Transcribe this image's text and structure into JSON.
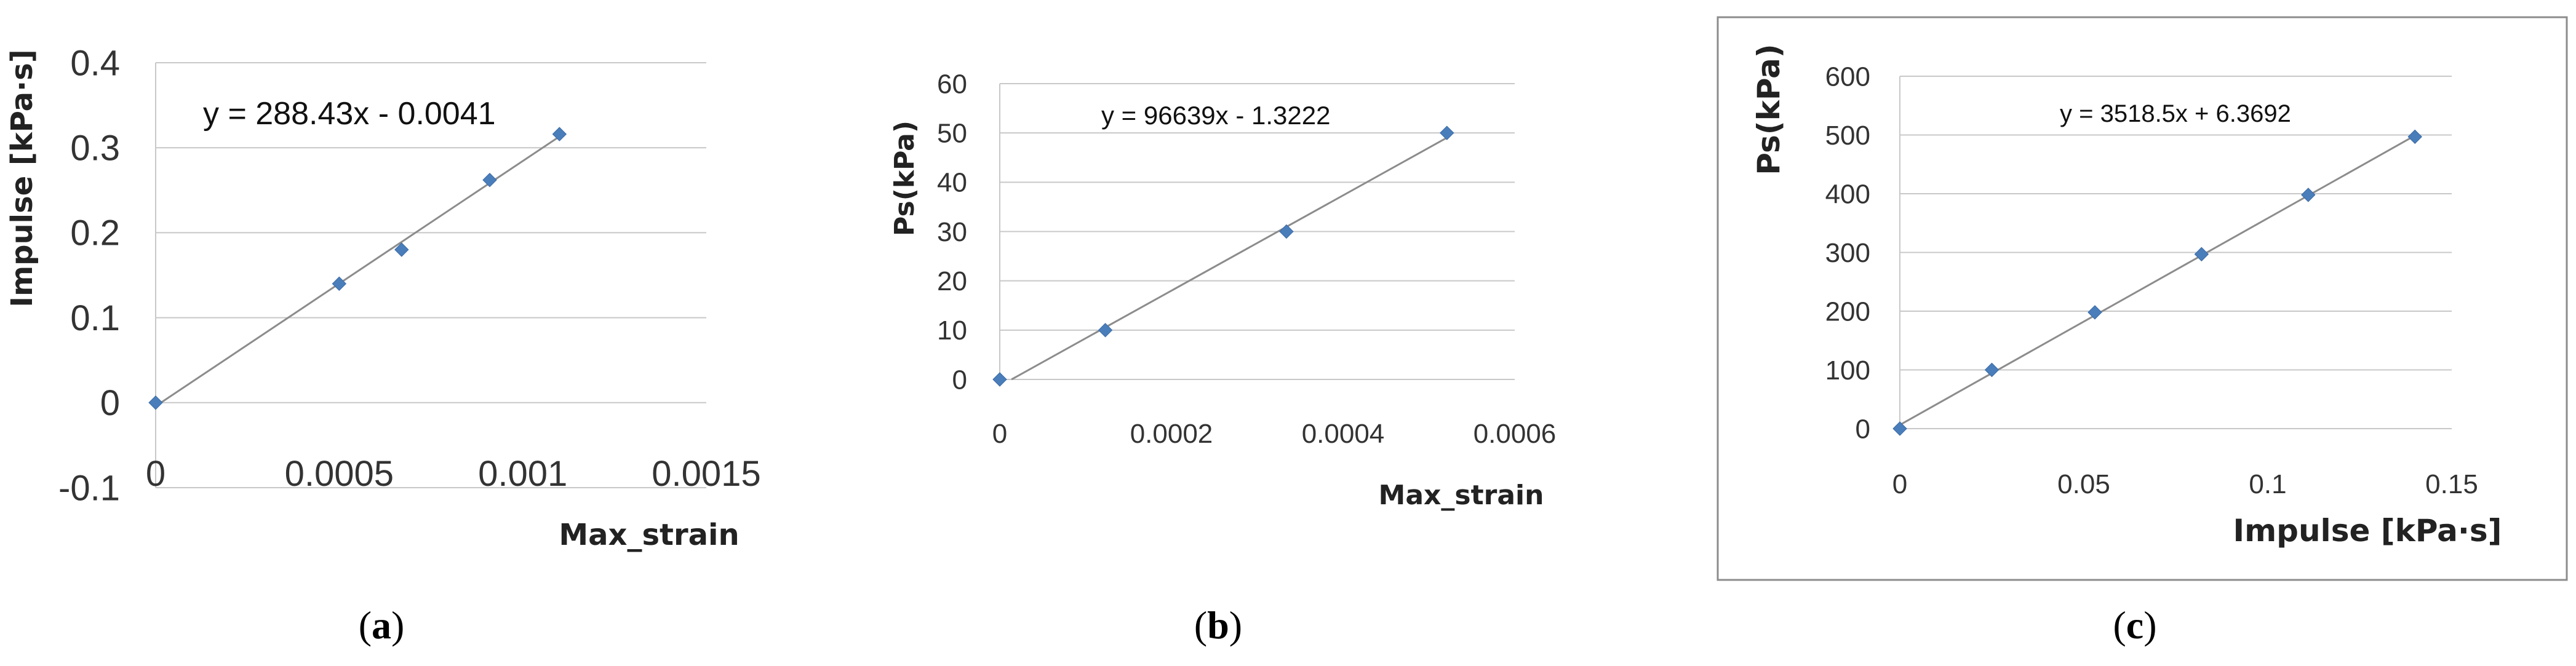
{
  "chart_data": [
    {
      "id": "a",
      "type": "scatter",
      "caption_letter": "a",
      "xlabel": "Max_strain",
      "ylabel": "Impulse [kPa·s]",
      "xlim": [
        0,
        0.0015
      ],
      "ylim": [
        -0.1,
        0.4
      ],
      "xticks": [
        "0",
        "0.0005",
        "0.001",
        "0.0015"
      ],
      "yticks": [
        "-0.1",
        "0",
        "0.1",
        "0.2",
        "0.3",
        "0.4"
      ],
      "grid": true,
      "boxed": false,
      "points": [
        [
          0,
          0
        ],
        [
          0.0005,
          0.14
        ],
        [
          0.00067,
          0.18
        ],
        [
          0.00091,
          0.262
        ],
        [
          0.0011,
          0.316
        ]
      ],
      "trendline": {
        "slope": 288.43,
        "intercept": -0.0041,
        "x_range": [
          0,
          0.0011
        ]
      },
      "equation": "y = 288.43x - 0.0041"
    },
    {
      "id": "b",
      "type": "scatter",
      "caption_letter": "b",
      "xlabel": "Max_strain",
      "ylabel": "Ps(kPa)",
      "xlim": [
        0,
        0.0006
      ],
      "ylim": [
        0,
        60
      ],
      "xticks": [
        "0",
        "0.0002",
        "0.0004",
        "0.0006"
      ],
      "yticks": [
        "0",
        "10",
        "20",
        "30",
        "40",
        "50",
        "60"
      ],
      "grid": true,
      "boxed": false,
      "points": [
        [
          0,
          0
        ],
        [
          0.000123,
          10
        ],
        [
          0.000334,
          30
        ],
        [
          0.000521,
          50
        ]
      ],
      "trendline": {
        "slope": 96639,
        "intercept": -1.3222,
        "x_range": [
          1.37e-05,
          0.000521
        ]
      },
      "equation": "y = 96639x - 1.3222"
    },
    {
      "id": "c",
      "type": "scatter",
      "caption_letter": "c",
      "xlabel": "Impulse [kPa·s]",
      "ylabel": "Ps(kPa)",
      "xlim": [
        0,
        0.15
      ],
      "ylim": [
        0,
        600
      ],
      "xticks": [
        "0",
        "0.05",
        "0.1",
        "0.15"
      ],
      "yticks": [
        "0",
        "100",
        "200",
        "300",
        "400",
        "500",
        "600"
      ],
      "grid": true,
      "boxed": true,
      "points": [
        [
          0,
          0
        ],
        [
          0.025,
          100
        ],
        [
          0.053,
          198
        ],
        [
          0.082,
          297
        ],
        [
          0.111,
          398
        ],
        [
          0.14,
          497
        ]
      ],
      "trendline": {
        "slope": 3518.5,
        "intercept": 6.3692,
        "x_range": [
          0,
          0.14
        ]
      },
      "equation": "y = 3518.5x + 6.3692"
    }
  ]
}
